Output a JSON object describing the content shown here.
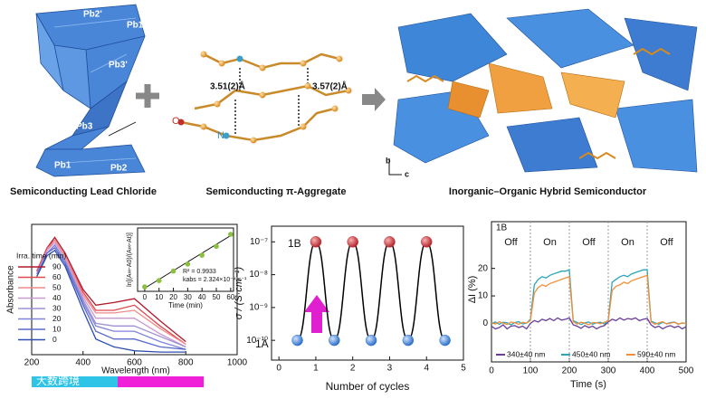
{
  "panels": [
    {
      "caption": "Semiconducting Lead Chloride",
      "labels": [
        "Pb2'",
        "Pb1'",
        "Pb3'",
        "Pb3",
        "Pb1",
        "Pb2"
      ]
    },
    {
      "caption": "Semiconducting π-Aggregate",
      "labels": [
        "3.51(2)Å",
        "3.57(2)Å",
        "O",
        "N"
      ]
    },
    {
      "caption": "Inorganic–Organic Hybrid Semiconductor",
      "labels": [
        "b",
        "c"
      ]
    }
  ],
  "chart_data": [
    {
      "type": "line",
      "x_label": "Wavelength (nm)",
      "y_label": "Absorbance",
      "legend_title": "Irra. time (min)",
      "x": [
        220,
        260,
        290,
        330,
        400,
        450,
        520,
        600,
        700,
        800
      ],
      "xlim": [
        200,
        1000
      ],
      "xticks": [
        200,
        400,
        600,
        800,
        1000
      ],
      "ylim": [
        0,
        0.5
      ],
      "series": [
        {
          "name": "90",
          "color": "#b2182b",
          "values": [
            0.32,
            0.41,
            0.45,
            0.39,
            0.25,
            0.19,
            0.2,
            0.215,
            0.13,
            0.05
          ]
        },
        {
          "name": "60",
          "color": "#e04a4f",
          "values": [
            0.32,
            0.41,
            0.44,
            0.38,
            0.24,
            0.17,
            0.17,
            0.19,
            0.11,
            0.04
          ]
        },
        {
          "name": "50",
          "color": "#f08a8a",
          "values": [
            0.31,
            0.4,
            0.44,
            0.38,
            0.23,
            0.16,
            0.16,
            0.17,
            0.1,
            0.04
          ]
        },
        {
          "name": "40",
          "color": "#c99ad0",
          "values": [
            0.31,
            0.4,
            0.43,
            0.37,
            0.22,
            0.14,
            0.14,
            0.14,
            0.08,
            0.03
          ]
        },
        {
          "name": "30",
          "color": "#a08fd6",
          "values": [
            0.31,
            0.39,
            0.42,
            0.36,
            0.21,
            0.12,
            0.11,
            0.11,
            0.07,
            0.03
          ]
        },
        {
          "name": "20",
          "color": "#7f84d8",
          "values": [
            0.31,
            0.39,
            0.42,
            0.36,
            0.2,
            0.11,
            0.09,
            0.09,
            0.05,
            0.02
          ]
        },
        {
          "name": "10",
          "color": "#5a6bcc",
          "values": [
            0.3,
            0.39,
            0.41,
            0.35,
            0.19,
            0.09,
            0.06,
            0.06,
            0.03,
            0.02
          ]
        },
        {
          "name": "0",
          "color": "#2f4fb0",
          "values": [
            0.3,
            0.38,
            0.4,
            0.34,
            0.17,
            0.06,
            0.03,
            0.015,
            0.01,
            0.01
          ]
        }
      ],
      "inset": {
        "type": "scatter",
        "x_label": "Time (min)",
        "y_label": "ln[(A∞-A0)/(A∞-At)]",
        "annotations": [
          "R² = 0.9933",
          "kabs = 2.324×10⁻⁴ s⁻¹"
        ],
        "x": [
          0,
          10,
          20,
          30,
          40,
          50,
          60
        ],
        "values": [
          0.02,
          0.12,
          0.27,
          0.38,
          0.52,
          0.66,
          0.85
        ],
        "color": "#8bbf3f",
        "fit": {
          "x": [
            0,
            60
          ],
          "values": [
            0,
            0.83
          ]
        },
        "xlim": [
          -5,
          62
        ],
        "xticks": [
          0,
          10,
          20,
          30,
          40,
          50,
          60
        ],
        "ylim": [
          -0.05,
          0.95
        ]
      }
    },
    {
      "type": "line",
      "x_label": "Number of cycles",
      "y_label": "σ / (S·cm⁻¹)",
      "annotations": [
        "1A",
        "1B"
      ],
      "x": [
        0.5,
        1,
        1.5,
        2,
        2.5,
        3,
        3.5,
        4,
        4.5
      ],
      "values": [
        1e-10,
        1e-07,
        1e-10,
        1e-07,
        1e-10,
        1e-07,
        1e-10,
        1e-07,
        1e-10
      ],
      "point_colors": [
        "#3d7fd8",
        "#c8343a",
        "#3d7fd8",
        "#c8343a",
        "#3d7fd8",
        "#c8343a",
        "#3d7fd8",
        "#c8343a",
        "#3d7fd8"
      ],
      "color": "#000000",
      "yscale": "log",
      "xlim": [
        -0.2,
        5
      ],
      "xticks": [
        0,
        1,
        2,
        3,
        4,
        5
      ],
      "ylim": [
        2.5e-11,
        3e-07
      ],
      "yticks": [
        {
          "value": 1e-10,
          "label": "10⁻¹⁰"
        },
        {
          "value": 1e-09,
          "label": "10⁻⁹"
        },
        {
          "value": 1e-08,
          "label": "10⁻⁸"
        },
        {
          "value": 1e-07,
          "label": "10⁻⁷"
        }
      ]
    },
    {
      "type": "line",
      "x_label": "Time (s)",
      "y_label": "ΔI (%)",
      "panel_label": "1B",
      "dividers": [
        100,
        200,
        300,
        400
      ],
      "period_labels": [
        "Off",
        "On",
        "Off",
        "On",
        "Off"
      ],
      "x": [
        0,
        10,
        20,
        30,
        40,
        50,
        60,
        70,
        80,
        90,
        100,
        110,
        120,
        130,
        140,
        150,
        160,
        170,
        180,
        190,
        200,
        210,
        220,
        230,
        240,
        250,
        260,
        270,
        280,
        290,
        300,
        310,
        320,
        330,
        340,
        350,
        360,
        370,
        380,
        390,
        400,
        410,
        420,
        430,
        440,
        450,
        460,
        470,
        480,
        490,
        500
      ],
      "xlim": [
        0,
        500
      ],
      "xticks": [
        0,
        100,
        200,
        300,
        400,
        500
      ],
      "ylim": [
        -14,
        37
      ],
      "yticks": [
        0,
        10,
        20
      ],
      "series": [
        {
          "name": "340±40 nm",
          "color": "#6a3d9a",
          "values": [
            -1,
            -2,
            -1.5,
            -0.5,
            -2,
            -1,
            -0.8,
            -1.5,
            -1,
            -2,
            0,
            1,
            0.5,
            1.5,
            1,
            1.8,
            1,
            2,
            1.2,
            1.5,
            2,
            -0.5,
            -1,
            -1.8,
            -0.8,
            -1.5,
            -1,
            -2,
            -1.2,
            -0.8,
            0.5,
            1.5,
            1,
            2,
            1.2,
            1.8,
            1.5,
            2,
            1,
            1.5,
            1.8,
            -0.5,
            -1.5,
            -1,
            -2,
            -1.2,
            -0.8,
            -1.5,
            -1,
            -2,
            -1.2
          ]
        },
        {
          "name": "450±40 nm",
          "color": "#2aa6b8",
          "values": [
            0,
            0.5,
            -0.3,
            0.4,
            0.2,
            -0.5,
            0.3,
            0.6,
            -0.2,
            0.1,
            1.5,
            14,
            16,
            17,
            16.5,
            17.5,
            18,
            18.5,
            19,
            19,
            19.5,
            1,
            0.3,
            -0.4,
            0.2,
            0.5,
            -0.3,
            0.2,
            0.4,
            -0.2,
            1.2,
            15,
            16,
            17,
            17.5,
            17,
            18,
            18.5,
            19,
            19.5,
            19.5,
            0.8,
            0.2,
            -0.3,
            0.4,
            -0.1,
            0.3,
            0.5,
            -0.2,
            0.1,
            0
          ]
        },
        {
          "name": "590±40 nm",
          "color": "#f0903a",
          "values": [
            0.3,
            -0.2,
            0.6,
            0.1,
            -0.4,
            0.5,
            0.2,
            -0.3,
            0.4,
            0.1,
            1,
            11,
            13,
            14,
            13.5,
            14.5,
            15,
            15.5,
            16,
            16.5,
            17,
            0.6,
            -0.2,
            0.4,
            0.1,
            -0.5,
            0.3,
            0.2,
            -0.1,
            0.4,
            0.9,
            12,
            13.5,
            14,
            15,
            14.5,
            15.5,
            16,
            16.5,
            17,
            17.5,
            0.5,
            -0.3,
            0.2,
            0.6,
            -0.2,
            0.1,
            0.4,
            -0.3,
            0.2,
            -0.1
          ]
        }
      ]
    }
  ],
  "watermark": "大数跨境"
}
